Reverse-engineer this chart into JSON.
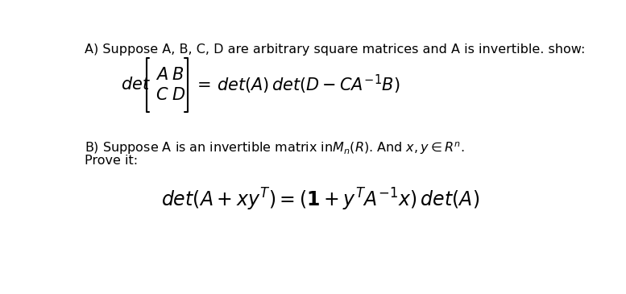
{
  "background_color": "#ffffff",
  "figsize": [
    7.77,
    3.65
  ],
  "dpi": 100,
  "text_color": "#000000",
  "header_fontsize": 11.5,
  "formula_fontsize_a": 15,
  "formula_fontsize_b": 17
}
